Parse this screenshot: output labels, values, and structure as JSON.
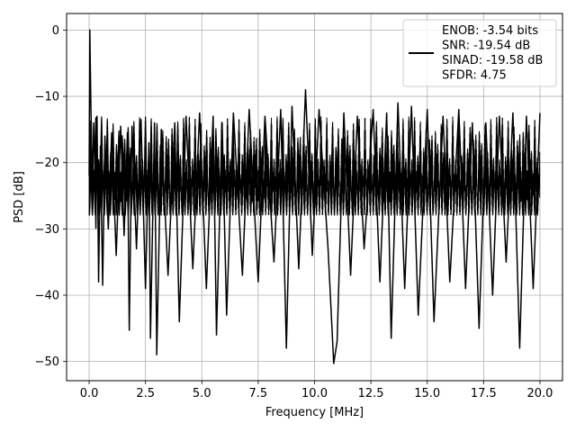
{
  "chart_data": {
    "type": "line",
    "title": "",
    "xlabel": "Frequency [MHz]",
    "ylabel": "PSD [dB]",
    "xlim": [
      -1.0,
      21.0
    ],
    "ylim": [
      -52.9,
      2.5
    ],
    "xticks": [
      0.0,
      2.5,
      5.0,
      7.5,
      10.0,
      12.5,
      15.0,
      17.5,
      20.0
    ],
    "xtick_labels": [
      "0.0",
      "2.5",
      "5.0",
      "7.5",
      "10.0",
      "12.5",
      "15.0",
      "17.5",
      "20.0"
    ],
    "yticks": [
      0,
      -10,
      -20,
      -30,
      -40,
      -50
    ],
    "ytick_labels": [
      "0",
      "−10",
      "−20",
      "−30",
      "−40",
      "−50"
    ],
    "grid": true,
    "legend_position": "top-right",
    "legend": {
      "lines": [
        "ENOB: -3.54 bits",
        "SNR: -19.54 dB",
        "SINAD: -19.58 dB",
        "SFDR: 4.75"
      ]
    },
    "series": [
      {
        "color": "#000000",
        "points": [
          [
            0.0,
            -22.0
          ],
          [
            0.01,
            -14.0
          ],
          [
            0.02,
            -8.0
          ],
          [
            0.03,
            0.0
          ],
          [
            0.05,
            -5.0
          ],
          [
            0.08,
            -12.0
          ],
          [
            0.12,
            -18.0
          ],
          [
            0.16,
            -24.0
          ],
          [
            0.2,
            -14.0
          ],
          [
            0.25,
            -19.0
          ],
          [
            0.3,
            -29.9
          ],
          [
            0.35,
            -13.0
          ],
          [
            0.42,
            -38.0
          ],
          [
            0.5,
            -17.5
          ],
          [
            0.6,
            -38.5
          ],
          [
            0.7,
            -16.0
          ],
          [
            0.85,
            -30.0
          ],
          [
            1.0,
            -15.5
          ],
          [
            1.2,
            -34.0
          ],
          [
            1.4,
            -14.5
          ],
          [
            1.55,
            -31.0
          ],
          [
            1.7,
            -15.5
          ],
          [
            1.78,
            -45.3
          ],
          [
            1.9,
            -14.5
          ],
          [
            2.1,
            -33.0
          ],
          [
            2.3,
            -13.5
          ],
          [
            2.5,
            -39.0
          ],
          [
            2.65,
            -17.0
          ],
          [
            2.72,
            -46.5
          ],
          [
            2.9,
            -14.0
          ],
          [
            3.0,
            -49.0
          ],
          [
            3.2,
            -15.0
          ],
          [
            3.5,
            -37.0
          ],
          [
            3.8,
            -14.0
          ],
          [
            4.0,
            -44.0
          ],
          [
            4.3,
            -13.0
          ],
          [
            4.6,
            -36.0
          ],
          [
            4.9,
            -12.5
          ],
          [
            5.2,
            -39.0
          ],
          [
            5.5,
            -13.0
          ],
          [
            5.65,
            -46.0
          ],
          [
            5.9,
            -14.0
          ],
          [
            6.1,
            -43.0
          ],
          [
            6.4,
            -12.5
          ],
          [
            6.8,
            -37.0
          ],
          [
            7.1,
            -12.0
          ],
          [
            7.5,
            -38.0
          ],
          [
            7.8,
            -13.0
          ],
          [
            8.2,
            -35.0
          ],
          [
            8.5,
            -12.0
          ],
          [
            8.75,
            -48.0
          ],
          [
            9.0,
            -11.5
          ],
          [
            9.3,
            -36.0
          ],
          [
            9.6,
            -9.0
          ],
          [
            9.9,
            -34.0
          ],
          [
            10.2,
            -12.0
          ],
          [
            10.6,
            -33.0
          ],
          [
            10.85,
            -50.3
          ],
          [
            11.0,
            -47.0
          ],
          [
            11.3,
            -12.5
          ],
          [
            11.6,
            -37.0
          ],
          [
            11.9,
            -13.0
          ],
          [
            12.2,
            -33.0
          ],
          [
            12.6,
            -12.0
          ],
          [
            12.9,
            -38.0
          ],
          [
            13.2,
            -12.5
          ],
          [
            13.4,
            -46.5
          ],
          [
            13.7,
            -11.0
          ],
          [
            14.0,
            -39.0
          ],
          [
            14.3,
            -11.5
          ],
          [
            14.6,
            -43.0
          ],
          [
            15.0,
            -12.0
          ],
          [
            15.3,
            -44.0
          ],
          [
            15.7,
            -13.0
          ],
          [
            16.0,
            -38.0
          ],
          [
            16.4,
            -12.0
          ],
          [
            16.7,
            -39.0
          ],
          [
            17.0,
            -14.0
          ],
          [
            17.3,
            -45.0
          ],
          [
            17.6,
            -14.0
          ],
          [
            17.9,
            -40.0
          ],
          [
            18.2,
            -13.0
          ],
          [
            18.5,
            -35.0
          ],
          [
            18.8,
            -12.5
          ],
          [
            19.1,
            -48.0
          ],
          [
            19.4,
            -13.0
          ],
          [
            19.7,
            -39.0
          ],
          [
            20.0,
            -12.5
          ]
        ]
      }
    ]
  }
}
